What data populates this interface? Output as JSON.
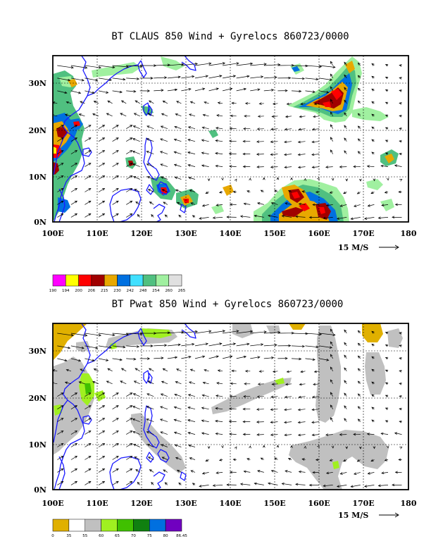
{
  "panels": [
    {
      "title": "BT CLAUS 850 Wind + Gyrelocs 860723/0000",
      "y_ticks": [
        "30N",
        "20N",
        "10N",
        "0N"
      ],
      "x_ticks": [
        "100E",
        "110E",
        "120E",
        "130E",
        "140E",
        "150E",
        "160E",
        "170E",
        "180"
      ],
      "ref_label": "15 M/S",
      "colorbar": {
        "labels": [
          "190",
          "194",
          "200",
          "206",
          "215",
          "230",
          "242",
          "248",
          "254",
          "260",
          "265"
        ],
        "colors": [
          "#ff00ff",
          "#ffff00",
          "#ff0000",
          "#a00000",
          "#e8a800",
          "#0070e0",
          "#40e0ff",
          "#50c080",
          "#a0f0a0",
          "#e0e0e0"
        ]
      }
    },
    {
      "title": "BT Pwat 850 Wind + Gyrelocs 860723/0000",
      "y_ticks": [
        "30N",
        "20N",
        "10N",
        "0N"
      ],
      "x_ticks": [
        "100E",
        "110E",
        "120E",
        "130E",
        "140E",
        "150E",
        "160E",
        "170E",
        "180"
      ],
      "ref_label": "15 M/S",
      "colorbar": {
        "labels": [
          "0",
          "35",
          "55",
          "60",
          "65",
          "70",
          "75",
          "80",
          "86.45"
        ],
        "colors": [
          "#e0b000",
          "#ffffff",
          "#c0c0c0",
          "#a0f020",
          "#40c000",
          "#108010",
          "#0070e0",
          "#7000c0"
        ]
      }
    }
  ]
}
